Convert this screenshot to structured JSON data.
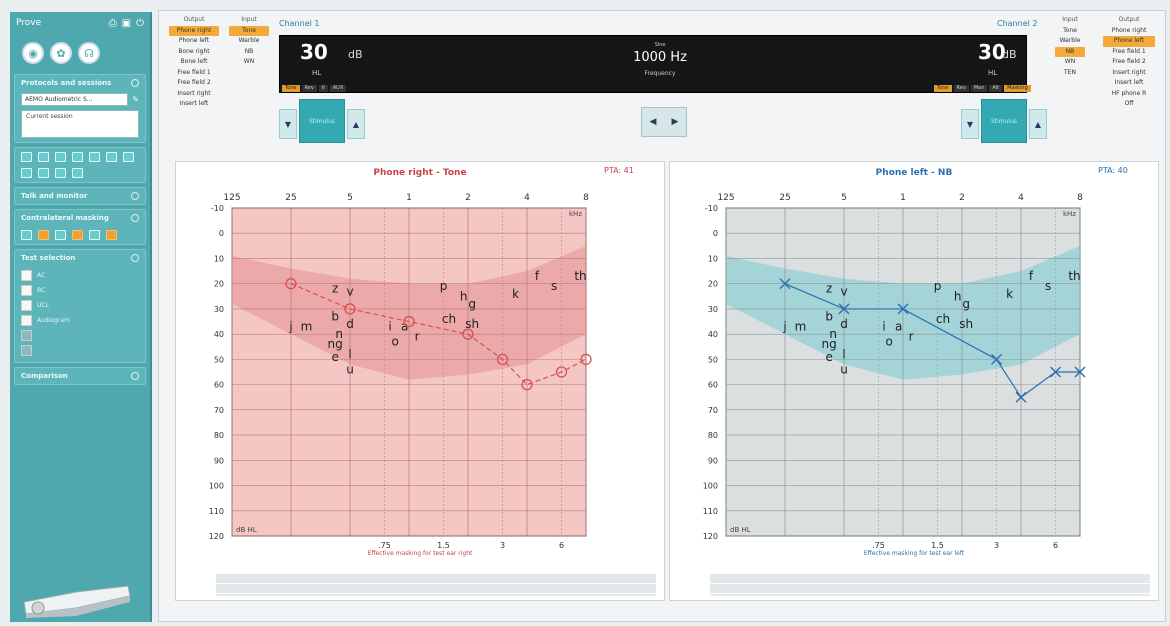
{
  "sidebar": {
    "title": "Prove",
    "panel_protocol": "Protocols and sessions",
    "protocol_value": "AEMO Audiometric S...",
    "session_item": "Current session",
    "panel_talk": "Talk and monitor",
    "panel_masking": "Contralateral masking",
    "panel_tests": "Test selection",
    "test_rows": [
      "AC",
      "BC",
      "UCL",
      "Audiogram",
      "",
      ""
    ],
    "panel_comparison": "Comparison"
  },
  "left_output": {
    "header": "Output",
    "items": [
      "Phone right",
      "Phone left",
      "Bone right",
      "Bone left",
      "Free field 1",
      "Free field 2",
      "Insert right",
      "Insert left"
    ],
    "selected": 0
  },
  "left_input": {
    "header": "Input",
    "items": [
      "Tone",
      "Warble",
      "NB",
      "WN"
    ],
    "selected": 0
  },
  "right_input": {
    "header": "Input",
    "items": [
      "Tone",
      "Warble",
      "NB",
      "WN",
      "TEN"
    ],
    "selected": 2
  },
  "right_output": {
    "header": "Output",
    "items": [
      "Phone right",
      "Phone left",
      "Free field 1",
      "Free field 2",
      "Insert right",
      "Insert left",
      "HF phone R",
      "Off"
    ],
    "selected": 1
  },
  "channel1": {
    "label": "Channel 1",
    "level": "30",
    "unit": "dB",
    "hl": "HL"
  },
  "channel2": {
    "label": "Channel 2",
    "level": "30",
    "unit": "dB",
    "hl": "HL"
  },
  "frequency": {
    "top": "Sine",
    "value": "1000 Hz",
    "bottom": "Frequency"
  },
  "bar_tags_left": [
    "Tone",
    "Rev",
    "II",
    "AUX"
  ],
  "bar_tags_right": [
    "Tone",
    "Rev",
    "Man",
    "Alt",
    "Masking"
  ],
  "stimulus": {
    "left": "Stimulus",
    "right": "Stimulus"
  },
  "audiogram_right": {
    "title": "Phone right - Tone",
    "pta_label": "PTA:",
    "pta_value": "41",
    "khz": "kHz",
    "db_hl": "dB HL",
    "masking": "Effective masking for test ear right",
    "color": "#d9504f"
  },
  "audiogram_left": {
    "title": "Phone left - NB",
    "pta_label": "PTA:",
    "pta_value": "40",
    "khz": "kHz",
    "db_hl": "dB HL",
    "masking": "Effective masking for test ear left",
    "color": "#2a6fb0"
  },
  "freq_labels_top": [
    "125",
    "25",
    "5",
    "1",
    "2",
    "4",
    "8"
  ],
  "freq_labels_bottom": [
    ".75",
    "1.5",
    "3",
    "6"
  ],
  "db_labels": [
    "-10",
    "0",
    "10",
    "20",
    "30",
    "40",
    "50",
    "60",
    "70",
    "80",
    "90",
    "100",
    "110",
    "120"
  ],
  "chart_data": [
    {
      "type": "line",
      "title": "Phone right - Tone",
      "x_unit": "kHz",
      "y_unit": "dB HL",
      "x": [
        0.25,
        0.5,
        1,
        2,
        3,
        4,
        6,
        8
      ],
      "values": [
        20,
        30,
        35,
        40,
        50,
        60,
        55,
        50
      ],
      "marker": "circle",
      "ylim": [
        -10,
        120
      ]
    },
    {
      "type": "line",
      "title": "Phone left - NB",
      "x_unit": "kHz",
      "y_unit": "dB HL",
      "x": [
        0.25,
        0.5,
        1,
        3,
        4,
        6,
        8
      ],
      "values": [
        20,
        30,
        30,
        50,
        65,
        55,
        55
      ],
      "marker": "cross",
      "ylim": [
        -10,
        120
      ]
    }
  ],
  "speech_sounds": [
    {
      "t": "z",
      "f": 0.42,
      "db": 22
    },
    {
      "t": "v",
      "f": 0.5,
      "db": 23
    },
    {
      "t": "j",
      "f": 0.25,
      "db": 37
    },
    {
      "t": "m",
      "f": 0.3,
      "db": 37
    },
    {
      "t": "b",
      "f": 0.42,
      "db": 33
    },
    {
      "t": "d",
      "f": 0.5,
      "db": 36
    },
    {
      "t": "n",
      "f": 0.44,
      "db": 40
    },
    {
      "t": "ng",
      "f": 0.42,
      "db": 44
    },
    {
      "t": "e",
      "f": 0.42,
      "db": 49
    },
    {
      "t": "l",
      "f": 0.5,
      "db": 48
    },
    {
      "t": "u",
      "f": 0.5,
      "db": 54
    },
    {
      "t": "i",
      "f": 0.8,
      "db": 37
    },
    {
      "t": "a",
      "f": 0.95,
      "db": 37
    },
    {
      "t": "o",
      "f": 0.85,
      "db": 43
    },
    {
      "t": "r",
      "f": 1.1,
      "db": 41
    },
    {
      "t": "p",
      "f": 1.5,
      "db": 21
    },
    {
      "t": "h",
      "f": 1.9,
      "db": 25
    },
    {
      "t": "g",
      "f": 2.1,
      "db": 28
    },
    {
      "t": "ch",
      "f": 1.6,
      "db": 34
    },
    {
      "t": "sh",
      "f": 2.1,
      "db": 36
    },
    {
      "t": "k",
      "f": 3.5,
      "db": 24
    },
    {
      "t": "f",
      "f": 4.5,
      "db": 17
    },
    {
      "t": "s",
      "f": 5.5,
      "db": 21
    },
    {
      "t": "th",
      "f": 7.5,
      "db": 17
    }
  ]
}
